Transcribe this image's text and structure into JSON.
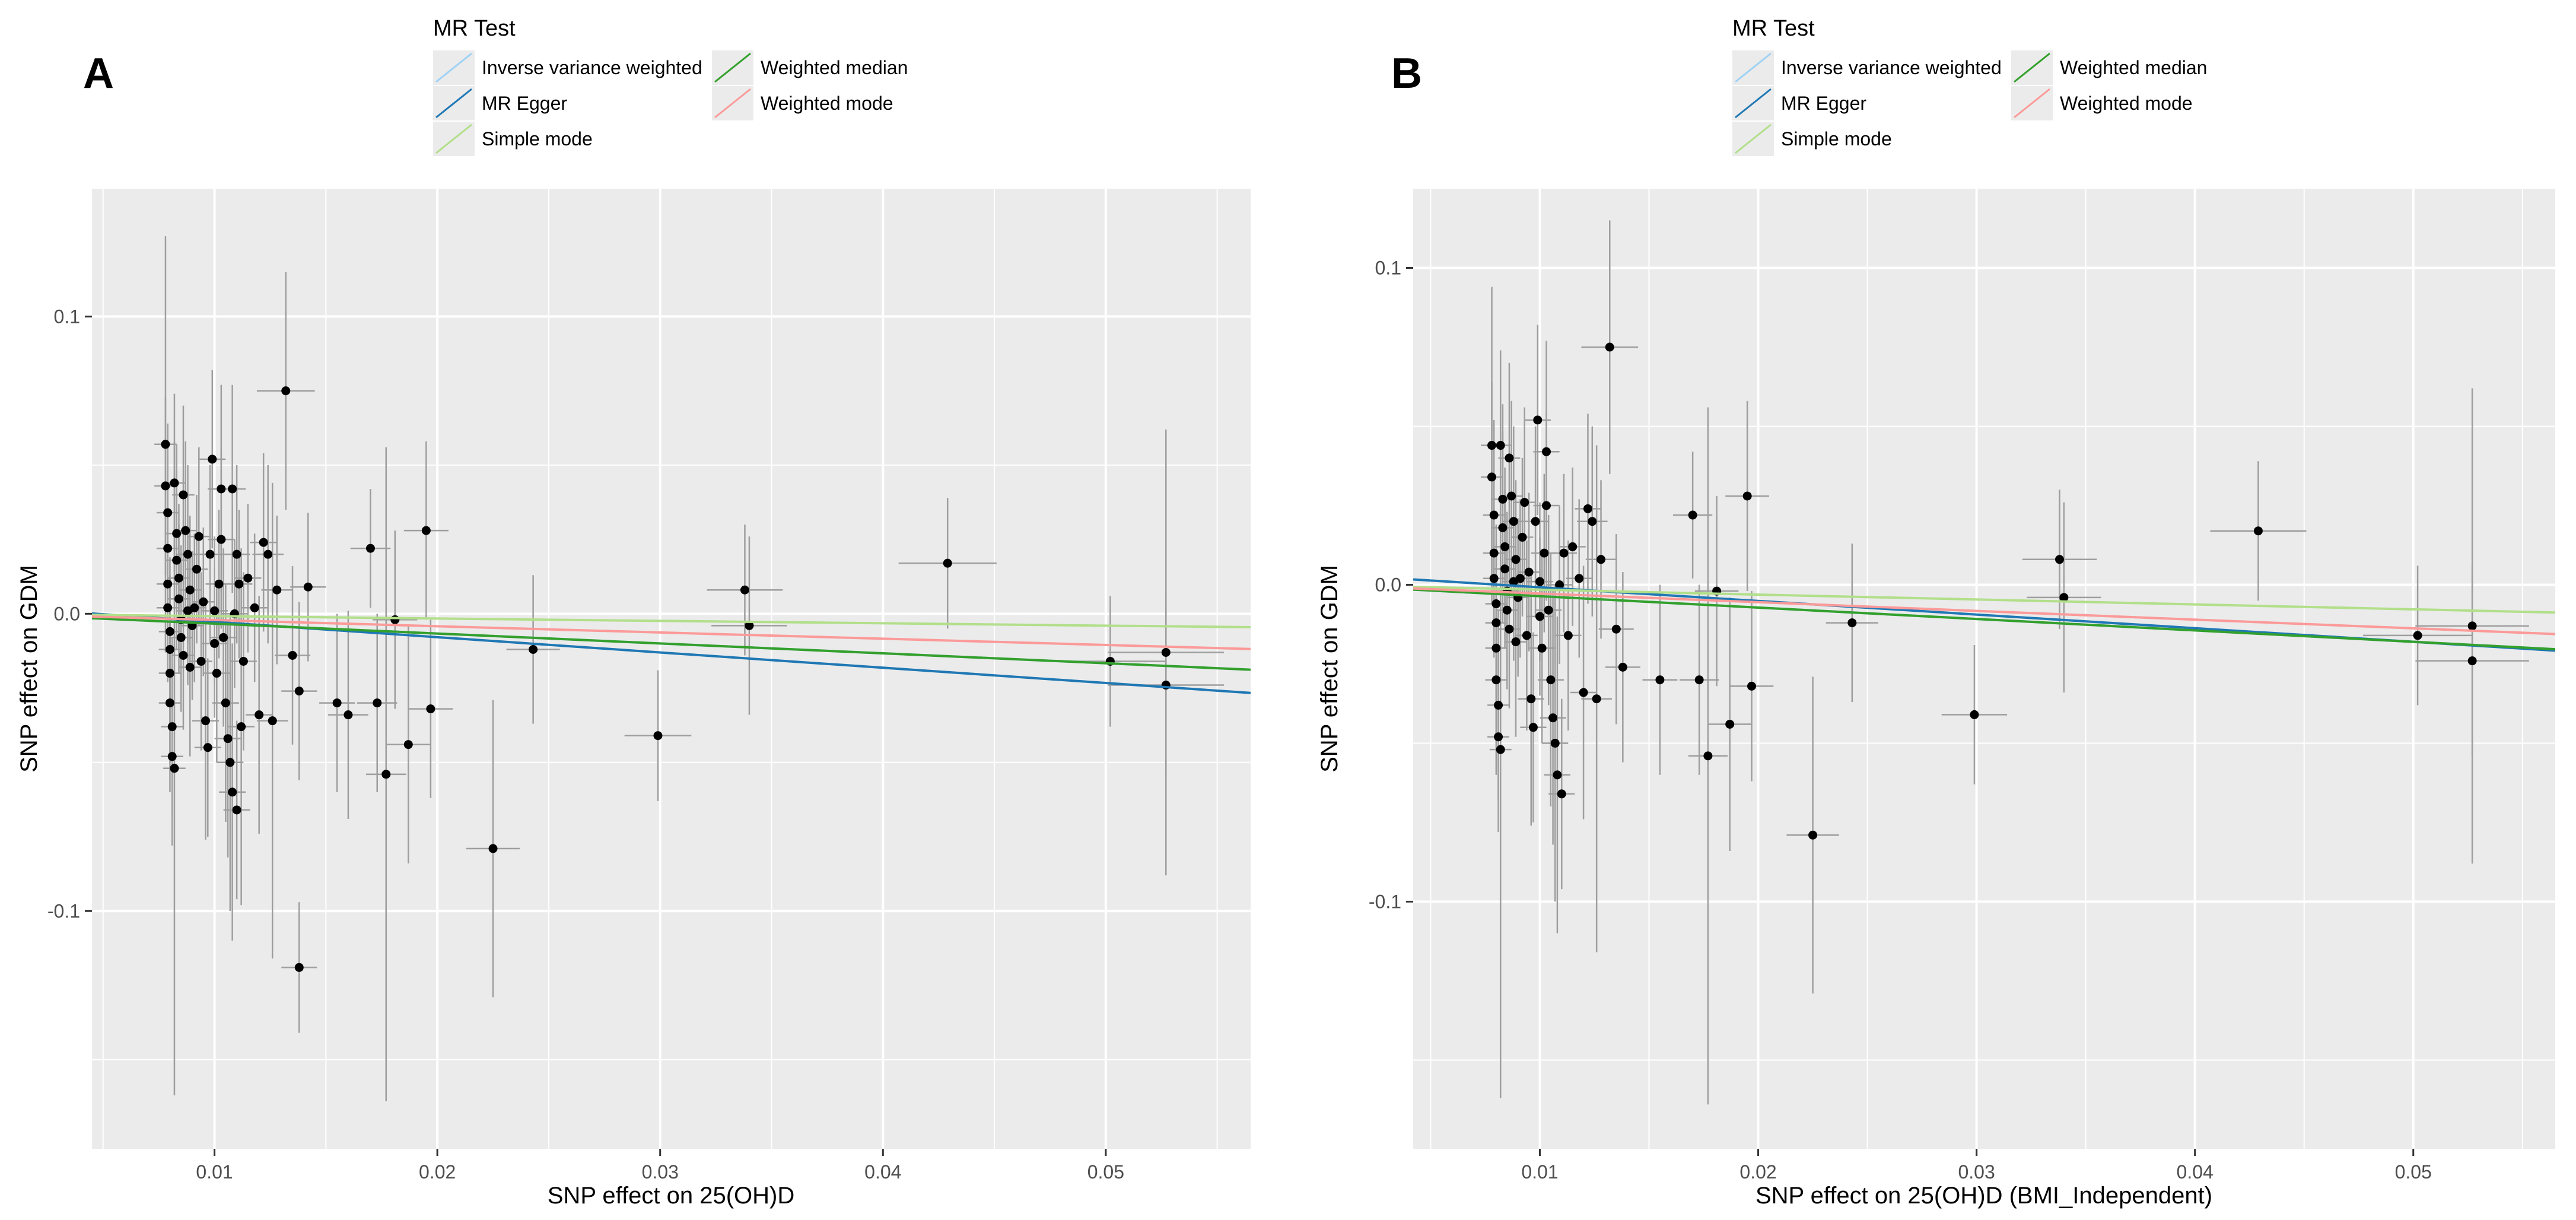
{
  "legend": {
    "title": "MR Test",
    "items": [
      {
        "label": "Inverse variance weighted",
        "color": "#9fd2f5"
      },
      {
        "label": "MR Egger",
        "color": "#1f78b4"
      },
      {
        "label": "Simple mode",
        "color": "#b2df8a"
      },
      {
        "label": "Weighted median",
        "color": "#33a02c"
      },
      {
        "label": "Weighted mode",
        "color": "#fb9a99"
      }
    ]
  },
  "chart_data": [
    {
      "type": "scatter",
      "panel_label": "A",
      "title": "",
      "xlabel": "SNP effect on 25(OH)D",
      "ylabel": "SNP effect on GDM",
      "xlim": [
        0.0045,
        0.0565
      ],
      "ylim": [
        -0.18,
        0.143
      ],
      "xticks": [
        0.01,
        0.02,
        0.03,
        0.04,
        0.05
      ],
      "yticks": [
        -0.1,
        0.0,
        0.1
      ],
      "xtick_labels": [
        "0.01",
        "0.02",
        "0.03",
        "0.04",
        "0.05"
      ],
      "ytick_labels": [
        "-0.1",
        "0.0",
        "0.1"
      ],
      "grid": true,
      "points": [
        [
          0.0078,
          0.057,
          0.07,
          0.0005
        ],
        [
          0.0078,
          0.043,
          0.03,
          0.0005
        ],
        [
          0.0079,
          0.034,
          0.03,
          0.0005
        ],
        [
          0.0079,
          0.022,
          0.03,
          0.0005
        ],
        [
          0.0079,
          0.01,
          0.025,
          0.0005
        ],
        [
          0.0079,
          0.002,
          0.025,
          0.0005
        ],
        [
          0.008,
          -0.006,
          0.025,
          0.0005
        ],
        [
          0.008,
          -0.012,
          0.025,
          0.0005
        ],
        [
          0.008,
          -0.02,
          0.03,
          0.0005
        ],
        [
          0.008,
          -0.03,
          0.03,
          0.0005
        ],
        [
          0.0081,
          -0.038,
          0.03,
          0.0005
        ],
        [
          0.0081,
          -0.048,
          0.03,
          0.0005
        ],
        [
          0.0082,
          -0.052,
          0.11,
          0.0005
        ],
        [
          0.0082,
          0.044,
          0.03,
          0.0005
        ],
        [
          0.0083,
          0.027,
          0.03,
          0.0005
        ],
        [
          0.0083,
          0.018,
          0.03,
          0.0005
        ],
        [
          0.0084,
          0.012,
          0.025,
          0.0005
        ],
        [
          0.0084,
          0.005,
          0.025,
          0.0005
        ],
        [
          0.0085,
          -0.002,
          0.025,
          0.0005
        ],
        [
          0.0085,
          -0.008,
          0.025,
          0.0005
        ],
        [
          0.0086,
          -0.014,
          0.025,
          0.0005
        ],
        [
          0.0086,
          0.04,
          0.03,
          0.0005
        ],
        [
          0.0087,
          0.028,
          0.03,
          0.0005
        ],
        [
          0.0088,
          0.02,
          0.03,
          0.0005
        ],
        [
          0.0088,
          0.001,
          0.025,
          0.0005
        ],
        [
          0.0089,
          -0.018,
          0.03,
          0.0005
        ],
        [
          0.0089,
          0.008,
          0.025,
          0.0005
        ],
        [
          0.009,
          -0.004,
          0.025,
          0.0005
        ],
        [
          0.0091,
          0.002,
          0.025,
          0.0005
        ],
        [
          0.0092,
          0.015,
          0.025,
          0.0005
        ],
        [
          0.0093,
          0.026,
          0.03,
          0.0005
        ],
        [
          0.0094,
          -0.016,
          0.03,
          0.0005
        ],
        [
          0.0095,
          0.004,
          0.025,
          0.0005
        ],
        [
          0.0096,
          -0.036,
          0.04,
          0.0006
        ],
        [
          0.0097,
          -0.045,
          0.03,
          0.0006
        ],
        [
          0.0098,
          0.02,
          0.03,
          0.0006
        ],
        [
          0.0099,
          0.052,
          0.03,
          0.0006
        ],
        [
          0.01,
          0.001,
          0.025,
          0.0006
        ],
        [
          0.01,
          -0.01,
          0.025,
          0.0006
        ],
        [
          0.0101,
          -0.02,
          0.03,
          0.0006
        ],
        [
          0.0102,
          0.01,
          0.025,
          0.0006
        ],
        [
          0.0103,
          0.025,
          0.03,
          0.0006
        ],
        [
          0.0103,
          0.042,
          0.035,
          0.0006
        ],
        [
          0.0104,
          -0.008,
          0.03,
          0.0006
        ],
        [
          0.0105,
          -0.03,
          0.04,
          0.0006
        ],
        [
          0.0106,
          -0.042,
          0.04,
          0.0006
        ],
        [
          0.0107,
          -0.05,
          0.05,
          0.0006
        ],
        [
          0.0108,
          -0.06,
          0.05,
          0.0006
        ],
        [
          0.0108,
          0.042,
          0.035,
          0.0006
        ],
        [
          0.0109,
          0.0,
          0.025,
          0.0006
        ],
        [
          0.011,
          0.02,
          0.03,
          0.0006
        ],
        [
          0.0111,
          0.01,
          0.025,
          0.0006
        ],
        [
          0.0112,
          -0.038,
          0.06,
          0.0006
        ],
        [
          0.0113,
          -0.016,
          0.03,
          0.0006
        ],
        [
          0.011,
          -0.066,
          0.03,
          0.0006
        ],
        [
          0.0115,
          0.012,
          0.025,
          0.0006
        ],
        [
          0.0118,
          0.002,
          0.025,
          0.0006
        ],
        [
          0.012,
          -0.034,
          0.04,
          0.0006
        ],
        [
          0.0122,
          0.024,
          0.03,
          0.0006
        ],
        [
          0.0124,
          0.02,
          0.03,
          0.0007
        ],
        [
          0.0126,
          -0.036,
          0.08,
          0.0007
        ],
        [
          0.0128,
          0.008,
          0.025,
          0.0007
        ],
        [
          0.0132,
          0.075,
          0.04,
          0.0013
        ],
        [
          0.0135,
          -0.014,
          0.03,
          0.0008
        ],
        [
          0.0138,
          -0.119,
          0.022,
          0.0008
        ],
        [
          0.0138,
          -0.026,
          0.03,
          0.0008
        ],
        [
          0.0142,
          0.009,
          0.025,
          0.0008
        ],
        [
          0.0155,
          -0.03,
          0.03,
          0.0008
        ],
        [
          0.016,
          -0.034,
          0.035,
          0.0009
        ],
        [
          0.017,
          0.022,
          0.02,
          0.0009
        ],
        [
          0.0173,
          -0.03,
          0.03,
          0.0009
        ],
        [
          0.0177,
          -0.054,
          0.11,
          0.0009
        ],
        [
          0.0181,
          -0.002,
          0.03,
          0.001
        ],
        [
          0.0187,
          -0.044,
          0.04,
          0.001
        ],
        [
          0.0195,
          0.028,
          0.03,
          0.001
        ],
        [
          0.0197,
          -0.032,
          0.03,
          0.001
        ],
        [
          0.0225,
          -0.079,
          0.05,
          0.0012
        ],
        [
          0.0243,
          -0.012,
          0.025,
          0.0012
        ],
        [
          0.0299,
          -0.041,
          0.022,
          0.0015
        ],
        [
          0.0338,
          0.008,
          0.022,
          0.0017
        ],
        [
          0.034,
          -0.004,
          0.03,
          0.0017
        ],
        [
          0.0429,
          0.017,
          0.022,
          0.0022
        ],
        [
          0.0502,
          -0.016,
          0.022,
          0.0025
        ],
        [
          0.0527,
          -0.013,
          0.075,
          0.0026
        ],
        [
          0.0527,
          -0.024,
          0.03,
          0.0026
        ]
      ],
      "lines": [
        {
          "method": "Inverse variance weighted",
          "intercept": 0,
          "slope": -0.333
        },
        {
          "method": "MR Egger",
          "intercept": 0.0024,
          "slope": -0.514
        },
        {
          "method": "Simple mode",
          "intercept": 0,
          "slope": -0.08
        },
        {
          "method": "Weighted median",
          "intercept": 0,
          "slope": -0.333
        },
        {
          "method": "Weighted mode",
          "intercept": 0,
          "slope": -0.21
        }
      ]
    },
    {
      "type": "scatter",
      "panel_label": "B",
      "title": "",
      "xlabel": "SNP effect on 25(OH)D (BMI_Independent)",
      "ylabel": "SNP effect on GDM",
      "xlim": [
        0.0042,
        0.0565
      ],
      "ylim": [
        -0.178,
        0.125
      ],
      "xticks": [
        0.01,
        0.02,
        0.03,
        0.04,
        0.05
      ],
      "yticks": [
        -0.1,
        0.0,
        0.1
      ],
      "xtick_labels": [
        "0.01",
        "0.02",
        "0.03",
        "0.04",
        "0.05"
      ],
      "ytick_labels": [
        "-0.1",
        "0.0",
        "0.1"
      ],
      "grid": true,
      "points": [
        [
          0.0078,
          0.044,
          0.05,
          0.0005
        ],
        [
          0.0078,
          0.034,
          0.03,
          0.0005
        ],
        [
          0.0079,
          0.022,
          0.03,
          0.0005
        ],
        [
          0.0079,
          0.01,
          0.025,
          0.0005
        ],
        [
          0.0079,
          0.002,
          0.025,
          0.0005
        ],
        [
          0.008,
          -0.006,
          0.025,
          0.0005
        ],
        [
          0.008,
          -0.012,
          0.025,
          0.0005
        ],
        [
          0.008,
          -0.02,
          0.03,
          0.0005
        ],
        [
          0.008,
          -0.03,
          0.03,
          0.0005
        ],
        [
          0.0081,
          -0.038,
          0.03,
          0.0005
        ],
        [
          0.0081,
          -0.048,
          0.03,
          0.0005
        ],
        [
          0.0082,
          -0.052,
          0.11,
          0.0005
        ],
        [
          0.0082,
          0.044,
          0.03,
          0.0005
        ],
        [
          0.0083,
          0.027,
          0.03,
          0.0005
        ],
        [
          0.0083,
          0.018,
          0.03,
          0.0005
        ],
        [
          0.0084,
          0.012,
          0.025,
          0.0005
        ],
        [
          0.0084,
          0.005,
          0.025,
          0.0005
        ],
        [
          0.0085,
          -0.002,
          0.025,
          0.0005
        ],
        [
          0.0085,
          -0.008,
          0.025,
          0.0005
        ],
        [
          0.0086,
          -0.014,
          0.025,
          0.0005
        ],
        [
          0.0086,
          0.04,
          0.03,
          0.0005
        ],
        [
          0.0087,
          0.028,
          0.03,
          0.0005
        ],
        [
          0.0088,
          0.02,
          0.03,
          0.0005
        ],
        [
          0.0088,
          0.001,
          0.025,
          0.0005
        ],
        [
          0.0089,
          -0.018,
          0.03,
          0.0005
        ],
        [
          0.0089,
          0.008,
          0.025,
          0.0005
        ],
        [
          0.009,
          -0.004,
          0.025,
          0.0005
        ],
        [
          0.0091,
          0.002,
          0.025,
          0.0005
        ],
        [
          0.0092,
          0.015,
          0.025,
          0.0005
        ],
        [
          0.0093,
          0.026,
          0.03,
          0.0005
        ],
        [
          0.0094,
          -0.016,
          0.03,
          0.0005
        ],
        [
          0.0095,
          0.004,
          0.025,
          0.0005
        ],
        [
          0.0096,
          -0.036,
          0.04,
          0.0006
        ],
        [
          0.0097,
          -0.045,
          0.03,
          0.0006
        ],
        [
          0.0098,
          0.02,
          0.03,
          0.0006
        ],
        [
          0.0099,
          0.052,
          0.03,
          0.0006
        ],
        [
          0.01,
          0.001,
          0.025,
          0.0006
        ],
        [
          0.01,
          -0.01,
          0.025,
          0.0006
        ],
        [
          0.0101,
          -0.02,
          0.03,
          0.0006
        ],
        [
          0.0102,
          0.01,
          0.025,
          0.0006
        ],
        [
          0.0103,
          0.025,
          0.03,
          0.0006
        ],
        [
          0.0103,
          0.042,
          0.035,
          0.0006
        ],
        [
          0.0104,
          -0.008,
          0.03,
          0.0006
        ],
        [
          0.0105,
          -0.03,
          0.04,
          0.0006
        ],
        [
          0.0106,
          -0.042,
          0.04,
          0.0006
        ],
        [
          0.0107,
          -0.05,
          0.05,
          0.0006
        ],
        [
          0.0108,
          -0.06,
          0.05,
          0.0006
        ],
        [
          0.0109,
          0.0,
          0.025,
          0.0006
        ],
        [
          0.011,
          -0.066,
          0.03,
          0.0006
        ],
        [
          0.0111,
          0.01,
          0.025,
          0.0006
        ],
        [
          0.0113,
          -0.016,
          0.03,
          0.0006
        ],
        [
          0.0115,
          0.012,
          0.025,
          0.0006
        ],
        [
          0.0118,
          0.002,
          0.025,
          0.0006
        ],
        [
          0.012,
          -0.034,
          0.04,
          0.0006
        ],
        [
          0.0122,
          0.024,
          0.03,
          0.0006
        ],
        [
          0.0124,
          0.02,
          0.03,
          0.0007
        ],
        [
          0.0126,
          -0.036,
          0.08,
          0.0007
        ],
        [
          0.0128,
          0.008,
          0.025,
          0.0007
        ],
        [
          0.0132,
          0.075,
          0.04,
          0.0013
        ],
        [
          0.0135,
          -0.014,
          0.03,
          0.0008
        ],
        [
          0.0138,
          -0.026,
          0.03,
          0.0008
        ],
        [
          0.0155,
          -0.03,
          0.03,
          0.0008
        ],
        [
          0.017,
          0.022,
          0.02,
          0.0009
        ],
        [
          0.0173,
          -0.03,
          0.03,
          0.0009
        ],
        [
          0.0177,
          -0.054,
          0.11,
          0.0009
        ],
        [
          0.0181,
          -0.002,
          0.03,
          0.001
        ],
        [
          0.0187,
          -0.044,
          0.04,
          0.001
        ],
        [
          0.0195,
          0.028,
          0.03,
          0.001
        ],
        [
          0.0197,
          -0.032,
          0.03,
          0.001
        ],
        [
          0.0225,
          -0.079,
          0.05,
          0.0012
        ],
        [
          0.0243,
          -0.012,
          0.025,
          0.0012
        ],
        [
          0.0299,
          -0.041,
          0.022,
          0.0015
        ],
        [
          0.0338,
          0.008,
          0.022,
          0.0017
        ],
        [
          0.034,
          -0.004,
          0.03,
          0.0017
        ],
        [
          0.0429,
          0.017,
          0.022,
          0.0022
        ],
        [
          0.0502,
          -0.016,
          0.022,
          0.0025
        ],
        [
          0.0527,
          -0.013,
          0.075,
          0.0026
        ],
        [
          0.0527,
          -0.024,
          0.03,
          0.0026
        ]
      ],
      "lines": [
        {
          "method": "Inverse variance weighted",
          "intercept": 0,
          "slope": -0.36
        },
        {
          "method": "MR Egger",
          "intercept": 0.0035,
          "slope": -0.43
        },
        {
          "method": "Simple mode",
          "intercept": 0,
          "slope": -0.155
        },
        {
          "method": "Weighted median",
          "intercept": 0,
          "slope": -0.36
        },
        {
          "method": "Weighted mode",
          "intercept": 0,
          "slope": -0.275
        }
      ]
    }
  ]
}
